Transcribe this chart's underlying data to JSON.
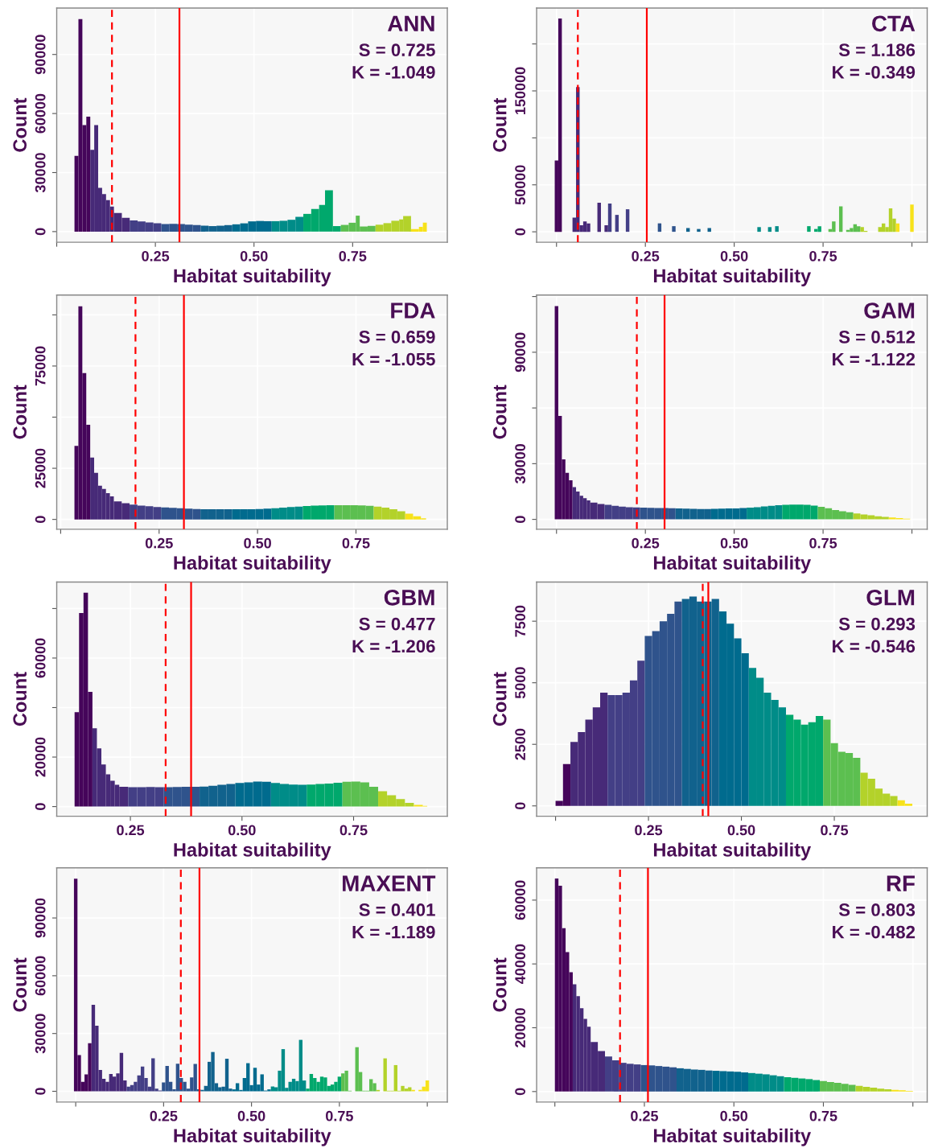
{
  "chart_data": [
    {
      "type": "histogram",
      "title": "ANN",
      "annotations": [
        "S = 0.725",
        "K = -1.049"
      ],
      "xlabel": "Habitat suitability",
      "ylabel": "Count",
      "bins": [
        0.045,
        0.055,
        0.065,
        0.075,
        0.085,
        0.095,
        0.105,
        0.115,
        0.125,
        0.135,
        0.145,
        0.165,
        0.185,
        0.205,
        0.225,
        0.245,
        0.265,
        0.285,
        0.305,
        0.325,
        0.345,
        0.365,
        0.385,
        0.405,
        0.425,
        0.445,
        0.465,
        0.485,
        0.505,
        0.525,
        0.545,
        0.565,
        0.585,
        0.605,
        0.625,
        0.645,
        0.665,
        0.68,
        0.7,
        0.72,
        0.74,
        0.758,
        0.768,
        0.788,
        0.808,
        0.828,
        0.848,
        0.868,
        0.878,
        0.898,
        0.918,
        0.928,
        0.938
      ],
      "values": [
        38500,
        108000,
        54100,
        58400,
        41500,
        54100,
        22200,
        19100,
        16000,
        12700,
        9500,
        7000,
        5700,
        5200,
        4700,
        4200,
        3800,
        3900,
        3800,
        3500,
        3300,
        3000,
        2800,
        3000,
        3300,
        3700,
        4200,
        5200,
        5400,
        5300,
        5300,
        5500,
        6000,
        7500,
        9000,
        11500,
        13500,
        21000,
        2800,
        3400,
        4500,
        8100,
        2600,
        2900,
        3500,
        4300,
        5500,
        6200,
        7900,
        1300,
        2400,
        4600
      ],
      "colors": [
        "#45055a",
        "#45055a",
        "#45055a",
        "#45055a",
        "#472a78",
        "#472a78",
        "#472a78",
        "#472a78",
        "#472a78",
        "#472a78",
        "#472a78",
        "#472a78",
        "#433f86",
        "#433f86",
        "#433f86",
        "#433f86",
        "#2f538c",
        "#2f538c",
        "#2f538c",
        "#2f538c",
        "#2f538c",
        "#11628d",
        "#11628d",
        "#11628d",
        "#11628d",
        "#006b8e",
        "#006b8e",
        "#006b8e",
        "#006b8e",
        "#006b8e",
        "#008c88",
        "#008c88",
        "#008c88",
        "#008c88",
        "#00a86c",
        "#00a86c",
        "#00a86c",
        "#00a86c",
        "#00a86c",
        "#5cbf50",
        "#5cbf50",
        "#5cbf50",
        "#5cbf50",
        "#5cbf50",
        "#b3d22a",
        "#b3d22a",
        "#b3d22a",
        "#b3d22a",
        "#b3d22a",
        "#f7e21a",
        "#f7e21a",
        "#f7e21a"
      ],
      "xlim": [
        0,
        0.99
      ],
      "xticks": [
        {
          "value": 0,
          "label": null
        },
        {
          "value": 0.25,
          "label": "0.25"
        },
        {
          "value": 0.5,
          "label": "0.50"
        },
        {
          "value": 0.75,
          "label": "0.75"
        }
      ],
      "ylim": [
        -5400,
        113600
      ],
      "yticks": [
        0,
        30000,
        60000,
        90000
      ],
      "grid": true,
      "ref_lines": [
        {
          "axis": "x",
          "value": 0.14,
          "color": "#ff0000",
          "line_style": "dashed"
        },
        {
          "axis": "x",
          "value": 0.311,
          "color": "#ff0000",
          "line_style": "solid"
        }
      ]
    },
    {
      "type": "histogram",
      "title": "CTA",
      "annotations": [
        "S = 1.186",
        "K = -0.349"
      ],
      "xlabel": "Habitat suitability",
      "ylabel": "Count",
      "bins": [
        -0.005,
        0.005,
        0.015,
        0.045,
        0.055,
        0.065,
        0.075,
        0.085,
        0.095,
        0.115,
        0.125,
        0.135,
        0.145,
        0.155,
        0.165,
        0.175,
        0.195,
        0.205,
        0.285,
        0.295,
        0.325,
        0.335,
        0.365,
        0.375,
        0.395,
        0.405,
        0.425,
        0.435,
        0.565,
        0.575,
        0.595,
        0.605,
        0.615,
        0.625,
        0.705,
        0.715,
        0.725,
        0.735,
        0.745,
        0.765,
        0.775,
        0.785,
        0.795,
        0.805,
        0.815,
        0.825,
        0.835,
        0.845,
        0.855,
        0.865,
        0.875,
        0.905,
        0.915,
        0.925,
        0.935,
        0.945,
        0.955,
        0.965,
        0.995,
        1.005
      ],
      "values": [
        76000,
        227000,
        0,
        15000,
        154000,
        7000,
        11000,
        9000,
        0,
        31000,
        0,
        7000,
        30000,
        0,
        18000,
        0,
        24000,
        0,
        9000,
        0,
        6000,
        0,
        4000,
        0,
        3000,
        0,
        4000,
        0,
        5000,
        0,
        5000,
        0,
        6000,
        0,
        6000,
        0,
        3000,
        6000,
        0,
        3000,
        11000,
        0,
        27000,
        0,
        2000,
        4000,
        8000,
        6000,
        5000,
        1000,
        0,
        5000,
        9000,
        5000,
        25000,
        14000,
        9000,
        0,
        29000
      ],
      "colors": [
        "#45055a",
        "#45055a",
        "#45055a",
        "#472a78",
        "#472a78",
        "#472a78",
        "#472a78",
        "#472a78",
        "#472a78",
        "#472a78",
        "#472a78",
        "#472a78",
        "#433f86",
        "#433f86",
        "#433f86",
        "#433f86",
        "#433f86",
        "#433f86",
        "#2f538c",
        "#2f538c",
        "#2f538c",
        "#11628d",
        "#11628d",
        "#11628d",
        "#11628d",
        "#11628d",
        "#11628d",
        "#006b8e",
        "#008c88",
        "#008c88",
        "#008c88",
        "#008c88",
        "#008c88",
        "#00a86c",
        "#00a86c",
        "#00a86c",
        "#00a86c",
        "#00a86c",
        "#5cbf50",
        "#5cbf50",
        "#5cbf50",
        "#5cbf50",
        "#5cbf50",
        "#5cbf50",
        "#5cbf50",
        "#5cbf50",
        "#5cbf50",
        "#5cbf50",
        "#b3d22a",
        "#b3d22a",
        "#b3d22a",
        "#b3d22a",
        "#b3d22a",
        "#b3d22a",
        "#b3d22a",
        "#b3d22a",
        "#f7e21a",
        "#f7e21a",
        "#f7e21a"
      ],
      "xlim": [
        -0.056,
        1.043
      ],
      "xticks": [
        {
          "value": 0,
          "label": null
        },
        {
          "value": 0.25,
          "label": "0.25"
        },
        {
          "value": 0.5,
          "label": "0.50"
        },
        {
          "value": 0.75,
          "label": "0.75"
        },
        {
          "value": 1,
          "label": null
        }
      ],
      "ylim": [
        -11100,
        238200
      ],
      "yticks": [
        0,
        50000,
        {
          "value": 100000,
          "label": null
        },
        150000,
        {
          "value": 200000,
          "label": null
        }
      ],
      "grid": true,
      "ref_lines": [
        {
          "axis": "x",
          "value": 0.06,
          "color": "#ff0000",
          "line_style": "dashed"
        },
        {
          "axis": "x",
          "value": 0.254,
          "color": "#ff0000",
          "line_style": "solid"
        }
      ]
    },
    {
      "type": "histogram",
      "title": "FDA",
      "annotations": [
        "S = 0.659",
        "K = -1.055"
      ],
      "xlabel": "Habitat suitability",
      "ylabel": "Count",
      "bins": [
        0.035,
        0.045,
        0.055,
        0.065,
        0.075,
        0.085,
        0.095,
        0.105,
        0.115,
        0.125,
        0.135,
        0.155,
        0.175,
        0.195,
        0.215,
        0.235,
        0.255,
        0.275,
        0.295,
        0.315,
        0.335,
        0.355,
        0.375,
        0.395,
        0.415,
        0.435,
        0.455,
        0.475,
        0.495,
        0.515,
        0.535,
        0.555,
        0.575,
        0.595,
        0.615,
        0.635,
        0.655,
        0.675,
        0.695,
        0.715,
        0.735,
        0.755,
        0.775,
        0.795,
        0.815,
        0.835,
        0.855,
        0.875,
        0.895,
        0.915,
        0.928
      ],
      "values": [
        35900,
        104200,
        71500,
        46300,
        30200,
        22800,
        16500,
        14900,
        12800,
        11300,
        8800,
        7900,
        7200,
        6700,
        6400,
        6100,
        5900,
        5700,
        5500,
        5300,
        5100,
        5000,
        5000,
        5000,
        5000,
        5000,
        5000,
        5000,
        5100,
        5300,
        5500,
        5800,
        6100,
        6300,
        6500,
        6700,
        6800,
        6900,
        6900,
        6900,
        6900,
        6800,
        6600,
        6300,
        5800,
        5000,
        4000,
        2800,
        1500,
        500
      ],
      "colors": [
        "#45055a",
        "#45055a",
        "#45055a",
        "#45055a",
        "#472a78",
        "#472a78",
        "#472a78",
        "#472a78",
        "#472a78",
        "#472a78",
        "#472a78",
        "#472a78",
        "#433f86",
        "#433f86",
        "#433f86",
        "#433f86",
        "#2f538c",
        "#2f538c",
        "#2f538c",
        "#2f538c",
        "#2f538c",
        "#11628d",
        "#11628d",
        "#11628d",
        "#11628d",
        "#006b8e",
        "#006b8e",
        "#006b8e",
        "#006b8e",
        "#006b8e",
        "#008c88",
        "#008c88",
        "#008c88",
        "#008c88",
        "#00a86c",
        "#00a86c",
        "#00a86c",
        "#00a86c",
        "#5cbf50",
        "#5cbf50",
        "#5cbf50",
        "#5cbf50",
        "#5cbf50",
        "#b3d22a",
        "#b3d22a",
        "#b3d22a",
        "#b3d22a",
        "#f7e21a",
        "#f7e21a",
        "#f7e21a"
      ],
      "xlim": [
        -0.01,
        0.982
      ],
      "xticks": [
        {
          "value": 0,
          "label": null
        },
        {
          "value": 0.25,
          "label": "0.25"
        },
        {
          "value": 0.5,
          "label": "0.50"
        },
        {
          "value": 0.75,
          "label": "0.75"
        }
      ],
      "ylim": [
        -4800,
        109700
      ],
      "yticks": [
        0,
        25000,
        {
          "value": 50000,
          "label": null
        },
        75000,
        {
          "value": 100000,
          "label": null
        }
      ],
      "grid": true,
      "ref_lines": [
        {
          "axis": "x",
          "value": 0.19,
          "color": "#ff0000",
          "line_style": "dashed"
        },
        {
          "axis": "x",
          "value": 0.313,
          "color": "#ff0000",
          "line_style": "solid"
        }
      ]
    },
    {
      "type": "histogram",
      "title": "GAM",
      "annotations": [
        "S = 0.512",
        "K = -1.122"
      ],
      "xlabel": "Habitat suitability",
      "ylabel": "Count",
      "bins": [
        -0.005,
        0.005,
        0.015,
        0.025,
        0.035,
        0.045,
        0.055,
        0.065,
        0.075,
        0.085,
        0.095,
        0.115,
        0.135,
        0.155,
        0.175,
        0.195,
        0.215,
        0.235,
        0.255,
        0.275,
        0.295,
        0.315,
        0.335,
        0.355,
        0.375,
        0.395,
        0.415,
        0.435,
        0.455,
        0.475,
        0.495,
        0.515,
        0.535,
        0.555,
        0.575,
        0.595,
        0.615,
        0.635,
        0.655,
        0.675,
        0.695,
        0.715,
        0.735,
        0.755,
        0.775,
        0.795,
        0.815,
        0.835,
        0.855,
        0.875,
        0.895,
        0.915,
        0.935,
        0.955,
        0.975,
        0.995
      ],
      "values": [
        114800,
        55700,
        32300,
        25100,
        21100,
        17400,
        15000,
        12700,
        11400,
        10200,
        9000,
        8300,
        7800,
        7300,
        6900,
        6600,
        6400,
        6300,
        6200,
        6100,
        6100,
        6000,
        5900,
        5800,
        5700,
        5600,
        5600,
        5700,
        5800,
        5900,
        5900,
        6100,
        6300,
        6600,
        7000,
        7300,
        7600,
        7800,
        7900,
        7900,
        7800,
        7400,
        6800,
        6000,
        5000,
        4400,
        3800,
        3200,
        2700,
        2200,
        1700,
        1300,
        1000,
        700,
        400
      ],
      "colors": [
        "#45055a",
        "#45055a",
        "#45055a",
        "#45055a",
        "#45055a",
        "#472a78",
        "#472a78",
        "#472a78",
        "#472a78",
        "#472a78",
        "#472a78",
        "#472a78",
        "#433f86",
        "#433f86",
        "#433f86",
        "#433f86",
        "#433f86",
        "#2f538c",
        "#2f538c",
        "#2f538c",
        "#2f538c",
        "#2f538c",
        "#11628d",
        "#11628d",
        "#11628d",
        "#11628d",
        "#11628d",
        "#006b8e",
        "#006b8e",
        "#006b8e",
        "#006b8e",
        "#006b8e",
        "#008c88",
        "#008c88",
        "#008c88",
        "#008c88",
        "#008c88",
        "#00a86c",
        "#00a86c",
        "#00a86c",
        "#00a86c",
        "#00a86c",
        "#5cbf50",
        "#5cbf50",
        "#5cbf50",
        "#5cbf50",
        "#5cbf50",
        "#b3d22a",
        "#b3d22a",
        "#b3d22a",
        "#b3d22a",
        "#b3d22a",
        "#f7e21a",
        "#f7e21a",
        "#f7e21a"
      ],
      "xlim": [
        -0.056,
        1.043
      ],
      "xticks": [
        {
          "value": 0,
          "label": null
        },
        {
          "value": 0.25,
          "label": "0.25"
        },
        {
          "value": 0.5,
          "label": "0.50"
        },
        {
          "value": 0.75,
          "label": "0.75"
        },
        {
          "value": 1,
          "label": null
        }
      ],
      "ylim": [
        -5300,
        120800
      ],
      "yticks": [
        0,
        30000,
        {
          "value": 60000,
          "label": null
        },
        90000,
        {
          "value": 120000,
          "label": null
        }
      ],
      "grid": true,
      "ref_lines": [
        {
          "axis": "x",
          "value": 0.226,
          "color": "#ff0000",
          "line_style": "dashed"
        },
        {
          "axis": "x",
          "value": 0.304,
          "color": "#ff0000",
          "line_style": "solid"
        }
      ]
    },
    {
      "type": "histogram",
      "title": "GBM",
      "annotations": [
        "S = 0.477",
        "K = -1.206"
      ],
      "xlabel": "Habitat suitability",
      "ylabel": "Count",
      "bins": [
        0.125,
        0.135,
        0.145,
        0.155,
        0.165,
        0.175,
        0.185,
        0.195,
        0.205,
        0.215,
        0.225,
        0.245,
        0.265,
        0.285,
        0.305,
        0.325,
        0.345,
        0.365,
        0.385,
        0.405,
        0.425,
        0.445,
        0.465,
        0.485,
        0.505,
        0.525,
        0.545,
        0.565,
        0.585,
        0.605,
        0.625,
        0.645,
        0.665,
        0.685,
        0.705,
        0.725,
        0.745,
        0.765,
        0.785,
        0.805,
        0.825,
        0.845,
        0.865,
        0.885,
        0.905,
        0.915
      ],
      "values": [
        38100,
        78200,
        86400,
        46300,
        31600,
        23500,
        17000,
        13000,
        10400,
        8800,
        8000,
        7800,
        7800,
        7900,
        7800,
        7800,
        7900,
        8000,
        8000,
        8100,
        8400,
        8800,
        9100,
        9500,
        9800,
        10100,
        10000,
        9500,
        9100,
        8900,
        8800,
        8900,
        9100,
        9300,
        9600,
        10000,
        10100,
        9800,
        8000,
        6200,
        4600,
        3000,
        1500,
        700,
        300
      ],
      "colors": [
        "#45055a",
        "#45055a",
        "#45055a",
        "#45055a",
        "#472a78",
        "#472a78",
        "#472a78",
        "#472a78",
        "#472a78",
        "#472a78",
        "#472a78",
        "#433f86",
        "#433f86",
        "#433f86",
        "#433f86",
        "#2f538c",
        "#2f538c",
        "#2f538c",
        "#2f538c",
        "#11628d",
        "#11628d",
        "#11628d",
        "#11628d",
        "#006b8e",
        "#006b8e",
        "#006b8e",
        "#006b8e",
        "#008c88",
        "#008c88",
        "#008c88",
        "#008c88",
        "#00a86c",
        "#00a86c",
        "#00a86c",
        "#00a86c",
        "#5cbf50",
        "#5cbf50",
        "#5cbf50",
        "#5cbf50",
        "#b3d22a",
        "#b3d22a",
        "#b3d22a",
        "#b3d22a",
        "#f7e21a",
        "#f7e21a"
      ],
      "xlim": [
        0.085,
        0.96
      ],
      "xticks": [
        {
          "value": 0.25,
          "label": "0.25"
        },
        {
          "value": 0.5,
          "label": "0.50"
        },
        {
          "value": 0.75,
          "label": "0.75"
        }
      ],
      "ylim": [
        -3900,
        90700
      ],
      "yticks": [
        0,
        20000,
        {
          "value": 40000,
          "label": null
        },
        60000,
        {
          "value": 80000,
          "label": null
        }
      ],
      "grid": true,
      "ref_lines": [
        {
          "axis": "x",
          "value": 0.329,
          "color": "#ff0000",
          "line_style": "dashed"
        },
        {
          "axis": "x",
          "value": 0.386,
          "color": "#ff0000",
          "line_style": "solid"
        }
      ]
    },
    {
      "type": "histogram",
      "title": "GLM",
      "annotations": [
        "S = 0.293",
        "K = -0.546"
      ],
      "xlabel": "Habitat suitability",
      "ylabel": "Count",
      "bins": [
        0,
        0.02,
        0.04,
        0.06,
        0.08,
        0.1,
        0.12,
        0.14,
        0.16,
        0.18,
        0.2,
        0.22,
        0.24,
        0.26,
        0.28,
        0.3,
        0.32,
        0.34,
        0.36,
        0.38,
        0.4,
        0.42,
        0.44,
        0.46,
        0.48,
        0.5,
        0.52,
        0.54,
        0.56,
        0.58,
        0.6,
        0.62,
        0.64,
        0.66,
        0.68,
        0.7,
        0.72,
        0.74,
        0.76,
        0.78,
        0.8,
        0.82,
        0.84,
        0.86,
        0.88,
        0.9,
        0.92,
        0.94,
        0.96
      ],
      "values": [
        200,
        1700,
        2600,
        3000,
        3500,
        4000,
        4600,
        4500,
        4500,
        4600,
        5100,
        5900,
        6900,
        7100,
        7500,
        7800,
        8300,
        8400,
        8500,
        8300,
        8300,
        8400,
        7900,
        7400,
        6800,
        6200,
        5600,
        5200,
        4600,
        4300,
        4000,
        3700,
        3500,
        3300,
        3400,
        3650,
        3500,
        2550,
        2200,
        2150,
        1950,
        1350,
        1100,
        700,
        500,
        400,
        230,
        90
      ],
      "colors": [
        "#45055a",
        "#45055a",
        "#472a78",
        "#472a78",
        "#472a78",
        "#472a78",
        "#472a78",
        "#433f86",
        "#433f86",
        "#433f86",
        "#433f86",
        "#433f86",
        "#2f538c",
        "#2f538c",
        "#2f538c",
        "#2f538c",
        "#2f538c",
        "#11628d",
        "#11628d",
        "#11628d",
        "#11628d",
        "#11628d",
        "#006b8e",
        "#006b8e",
        "#006b8e",
        "#006b8e",
        "#008c88",
        "#008c88",
        "#008c88",
        "#008c88",
        "#008c88",
        "#00a86c",
        "#00a86c",
        "#00a86c",
        "#00a86c",
        "#00a86c",
        "#5cbf50",
        "#5cbf50",
        "#5cbf50",
        "#5cbf50",
        "#5cbf50",
        "#b3d22a",
        "#b3d22a",
        "#b3d22a",
        "#b3d22a",
        "#b3d22a",
        "#f7e21a",
        "#f7e21a"
      ],
      "xlim": [
        -0.051,
        1.0
      ],
      "xticks": [
        {
          "value": 0,
          "label": null
        },
        {
          "value": 0.25,
          "label": "0.25"
        },
        {
          "value": 0.5,
          "label": "0.50"
        },
        {
          "value": 0.75,
          "label": "0.75"
        }
      ],
      "ylim": [
        -420,
        9090
      ],
      "yticks": [
        0,
        2500,
        5000,
        7500
      ],
      "grid": true,
      "ref_lines": [
        {
          "axis": "x",
          "value": 0.396,
          "color": "#ff0000",
          "line_style": "dashed"
        },
        {
          "axis": "x",
          "value": 0.411,
          "color": "#ff0000",
          "line_style": "solid"
        }
      ]
    },
    {
      "type": "histogram",
      "title": "MAXENT",
      "annotations": [
        "S = 0.401",
        "K = -1.189"
      ],
      "xlabel": "Habitat suitability",
      "ylabel": "Count",
      "bins": [
        -0.005,
        0.005,
        0.015,
        0.025,
        0.035,
        0.045,
        0.055,
        0.065,
        0.075,
        0.085,
        0.095,
        0.105,
        0.115,
        0.125,
        0.135,
        0.145,
        0.155,
        0.165,
        0.175,
        0.185,
        0.195,
        0.205,
        0.215,
        0.225,
        0.235,
        0.245,
        0.255,
        0.265,
        0.275,
        0.285,
        0.295,
        0.305,
        0.315,
        0.325,
        0.335,
        0.345,
        0.355,
        0.365,
        0.375,
        0.385,
        0.395,
        0.405,
        0.415,
        0.425,
        0.435,
        0.445,
        0.455,
        0.465,
        0.475,
        0.485,
        0.495,
        0.505,
        0.515,
        0.525,
        0.535,
        0.545,
        0.555,
        0.565,
        0.575,
        0.585,
        0.595,
        0.605,
        0.615,
        0.625,
        0.635,
        0.645,
        0.655,
        0.665,
        0.675,
        0.685,
        0.695,
        0.705,
        0.715,
        0.725,
        0.735,
        0.745,
        0.755,
        0.765,
        0.775,
        0.785,
        0.795,
        0.805,
        0.815,
        0.825,
        0.835,
        0.845,
        0.855,
        0.865,
        0.875,
        0.885,
        0.895,
        0.905,
        0.915,
        0.925,
        0.935,
        0.945,
        0.955,
        0.965,
        0.975,
        0.985,
        0.995,
        1.005
      ],
      "values": [
        110400,
        18800,
        4900,
        8800,
        25000,
        44900,
        34000,
        11100,
        6500,
        4900,
        9000,
        7600,
        9300,
        19900,
        5600,
        2400,
        3200,
        4900,
        8300,
        12900,
        6900,
        2400,
        17100,
        1400,
        400,
        4600,
        13200,
        4900,
        1000,
        14300,
        6900,
        4900,
        1400,
        7200,
        14200,
        1000,
        700,
        2800,
        15300,
        20400,
        4200,
        2100,
        2400,
        16900,
        1400,
        1000,
        4200,
        700,
        6900,
        14600,
        3200,
        12200,
        3500,
        8800,
        400,
        1000,
        2500,
        2100,
        10700,
        21900,
        1800,
        4900,
        6500,
        5300,
        26700,
        5600,
        1400,
        9000,
        6900,
        4900,
        7600,
        7200,
        2800,
        3500,
        4900,
        7600,
        9300,
        10700,
        300,
        0,
        22900,
        10000,
        300,
        300,
        6300,
        4200,
        700,
        0,
        17100,
        300,
        300,
        13600,
        300,
        2800,
        1400,
        2100,
        700,
        0,
        700,
        2400,
        5600
      ],
      "colors": [
        "#45055a",
        "#45055a",
        "#45055a",
        "#45055a",
        "#45055a",
        "#472a78",
        "#472a78",
        "#472a78",
        "#472a78",
        "#472a78",
        "#472a78",
        "#472a78",
        "#472a78",
        "#472a78",
        "#472a78",
        "#433f86",
        "#433f86",
        "#433f86",
        "#433f86",
        "#433f86",
        "#433f86",
        "#433f86",
        "#433f86",
        "#433f86",
        "#433f86",
        "#2f538c",
        "#2f538c",
        "#2f538c",
        "#2f538c",
        "#2f538c",
        "#2f538c",
        "#2f538c",
        "#2f538c",
        "#2f538c",
        "#2f538c",
        "#11628d",
        "#11628d",
        "#11628d",
        "#11628d",
        "#11628d",
        "#11628d",
        "#11628d",
        "#11628d",
        "#11628d",
        "#11628d",
        "#006b8e",
        "#006b8e",
        "#006b8e",
        "#006b8e",
        "#006b8e",
        "#006b8e",
        "#006b8e",
        "#006b8e",
        "#006b8e",
        "#006b8e",
        "#006b8e",
        "#008c88",
        "#008c88",
        "#008c88",
        "#008c88",
        "#008c88",
        "#008c88",
        "#008c88",
        "#008c88",
        "#008c88",
        "#008c88",
        "#00a86c",
        "#00a86c",
        "#00a86c",
        "#00a86c",
        "#00a86c",
        "#00a86c",
        "#00a86c",
        "#00a86c",
        "#00a86c",
        "#00a86c",
        "#5cbf50",
        "#5cbf50",
        "#5cbf50",
        "#5cbf50",
        "#5cbf50",
        "#5cbf50",
        "#5cbf50",
        "#5cbf50",
        "#5cbf50",
        "#5cbf50",
        "#b3d22a",
        "#b3d22a",
        "#b3d22a",
        "#b3d22a",
        "#b3d22a",
        "#b3d22a",
        "#b3d22a",
        "#b3d22a",
        "#b3d22a",
        "#b3d22a",
        "#f7e21a",
        "#f7e21a",
        "#f7e21a",
        "#f7e21a",
        "#f7e21a"
      ],
      "xlim": [
        -0.054,
        1.057
      ],
      "xticks": [
        {
          "value": 0,
          "label": null
        },
        {
          "value": 0.25,
          "label": "0.25"
        },
        {
          "value": 0.5,
          "label": "0.50"
        },
        {
          "value": 0.75,
          "label": "0.75"
        },
        {
          "value": 1,
          "label": null
        }
      ],
      "ylim": [
        -5600,
        116000
      ],
      "yticks": [
        0,
        30000,
        60000,
        90000
      ],
      "grid": true,
      "ref_lines": [
        {
          "axis": "x",
          "value": 0.299,
          "color": "#ff0000",
          "line_style": "dashed"
        },
        {
          "axis": "x",
          "value": 0.352,
          "color": "#ff0000",
          "line_style": "solid"
        }
      ]
    },
    {
      "type": "histogram",
      "title": "RF",
      "annotations": [
        "S = 0.803",
        "K = -0.482"
      ],
      "xlabel": "Habitat suitability",
      "ylabel": "Count",
      "bins": [
        0,
        0.01,
        0.02,
        0.03,
        0.04,
        0.05,
        0.06,
        0.07,
        0.08,
        0.09,
        0.1,
        0.12,
        0.14,
        0.16,
        0.18,
        0.2,
        0.22,
        0.24,
        0.26,
        0.28,
        0.3,
        0.32,
        0.34,
        0.36,
        0.38,
        0.4,
        0.42,
        0.44,
        0.46,
        0.48,
        0.5,
        0.52,
        0.54,
        0.56,
        0.58,
        0.6,
        0.62,
        0.64,
        0.66,
        0.68,
        0.7,
        0.72,
        0.74,
        0.76,
        0.78,
        0.8,
        0.82,
        0.84,
        0.86,
        0.88,
        0.9,
        0.92,
        0.94,
        0.96,
        0.98,
        1.0
      ],
      "values": [
        66800,
        64500,
        51200,
        43700,
        37400,
        33600,
        29900,
        26100,
        22800,
        20300,
        15500,
        12700,
        11000,
        9800,
        9000,
        8700,
        8500,
        8300,
        8200,
        8000,
        7800,
        7600,
        7300,
        7100,
        6900,
        6800,
        6600,
        6500,
        6400,
        6300,
        6200,
        6000,
        5800,
        5600,
        5400,
        5100,
        4800,
        4500,
        4300,
        4100,
        3900,
        3600,
        3300,
        3000,
        2700,
        2400,
        2100,
        1800,
        1500,
        1200,
        900,
        700,
        500,
        400,
        200
      ],
      "colors": [
        "#45055a",
        "#45055a",
        "#45055a",
        "#45055a",
        "#45055a",
        "#472a78",
        "#472a78",
        "#472a78",
        "#472a78",
        "#472a78",
        "#472a78",
        "#472a78",
        "#433f86",
        "#433f86",
        "#433f86",
        "#433f86",
        "#433f86",
        "#2f538c",
        "#2f538c",
        "#2f538c",
        "#2f538c",
        "#2f538c",
        "#11628d",
        "#11628d",
        "#11628d",
        "#11628d",
        "#11628d",
        "#006b8e",
        "#006b8e",
        "#006b8e",
        "#006b8e",
        "#006b8e",
        "#008c88",
        "#008c88",
        "#008c88",
        "#008c88",
        "#008c88",
        "#00a86c",
        "#00a86c",
        "#00a86c",
        "#00a86c",
        "#00a86c",
        "#5cbf50",
        "#5cbf50",
        "#5cbf50",
        "#5cbf50",
        "#5cbf50",
        "#b3d22a",
        "#b3d22a",
        "#b3d22a",
        "#b3d22a",
        "#b3d22a",
        "#f7e21a",
        "#f7e21a",
        "#f7e21a"
      ],
      "xlim": [
        -0.051,
        1.04
      ],
      "xticks": [
        {
          "value": 0,
          "label": null
        },
        {
          "value": 0.25,
          "label": "0.25"
        },
        {
          "value": 0.5,
          "label": "0.50"
        },
        {
          "value": 0.75,
          "label": "0.75"
        },
        {
          "value": 1,
          "label": null
        }
      ],
      "ylim": [
        -3300,
        70100
      ],
      "yticks": [
        0,
        20000,
        40000,
        60000
      ],
      "grid": true,
      "ref_lines": [
        {
          "axis": "x",
          "value": 0.182,
          "color": "#ff0000",
          "line_style": "dashed"
        },
        {
          "axis": "x",
          "value": 0.26,
          "color": "#ff0000",
          "line_style": "solid"
        }
      ]
    }
  ]
}
